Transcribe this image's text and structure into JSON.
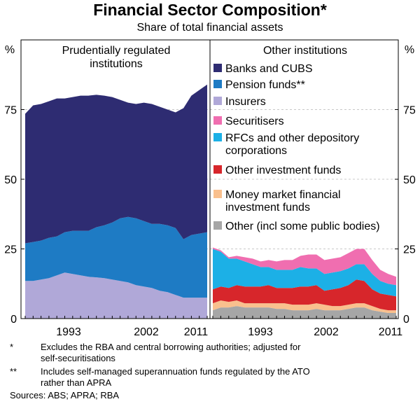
{
  "chart_data": {
    "type": "area",
    "title": "Financial Sector Composition*",
    "subtitle": "Share of total financial assets",
    "unit_label": "%",
    "ylim": [
      0,
      100
    ],
    "y_ticks": [
      0,
      25,
      50,
      75
    ],
    "x_tick_labels": [
      "1993",
      "2002",
      "2011"
    ],
    "panels": [
      {
        "title_lines": [
          "Prudentially regulated",
          "institutions"
        ],
        "x": [
          1988,
          1989,
          1990,
          1991,
          1992,
          1993,
          1994,
          1995,
          1996,
          1997,
          1998,
          1999,
          2000,
          2001,
          2002,
          2003,
          2004,
          2005,
          2006,
          2007,
          2008,
          2009,
          2010,
          2011
        ],
        "series": [
          {
            "name": "Insurers",
            "color": "#b0a8d8",
            "values": [
              13.5,
              13.5,
              14,
              14.5,
              15.5,
              16.5,
              16,
              15.5,
              15,
              14.8,
              14.5,
              14,
              13.5,
              13,
              12,
              11.5,
              11,
              10,
              9.5,
              8.5,
              7.5,
              7.5,
              7.5,
              7.5
            ]
          },
          {
            "name": "Pension funds**",
            "color": "#1e7bc4",
            "values": [
              13.5,
              14,
              14,
              14.5,
              14,
              14.5,
              15.5,
              16,
              16.5,
              18,
              19,
              20.5,
              22.5,
              23.5,
              24,
              23.5,
              23,
              24,
              24,
              24,
              21,
              22.5,
              23,
              23.5
            ]
          },
          {
            "name": "Banks and CUBS",
            "color": "#2e2c72",
            "values": [
              46.5,
              49,
              49,
              49,
              49.5,
              48,
              48,
              48.5,
              48.5,
              47.5,
              46.5,
              45,
              42.5,
              41,
              41,
              42.5,
              43,
              42,
              41.5,
              41.5,
              47,
              50,
              51.5,
              53
            ]
          }
        ]
      },
      {
        "title_lines": [
          "Other institutions"
        ],
        "x": [
          1988,
          1989,
          1990,
          1991,
          1992,
          1993,
          1994,
          1995,
          1996,
          1997,
          1998,
          1999,
          2000,
          2001,
          2002,
          2003,
          2004,
          2005,
          2006,
          2007,
          2008,
          2009,
          2010,
          2011
        ],
        "series": [
          {
            "name": "Other (incl some public bodies)",
            "color": "#a6a6a6",
            "values": [
              3,
              4,
              4,
              4.5,
              4,
              4,
              4,
              4,
              3.5,
              3.5,
              3,
              3,
              3,
              3.5,
              3,
              3,
              3,
              3.5,
              4,
              4,
              3,
              2.5,
              2,
              2
            ]
          },
          {
            "name": "Money market financial investment funds",
            "color": "#f9c08e",
            "values": [
              2.5,
              2.5,
              2,
              2,
              1.5,
              1.5,
              1.5,
              1.5,
              2,
              2,
              2,
              2,
              2,
              2,
              2,
              1.5,
              1.5,
              1.5,
              1.5,
              1.5,
              1.5,
              1,
              1,
              1
            ]
          },
          {
            "name": "Other investment funds",
            "color": "#d7262b",
            "values": [
              5,
              5,
              5,
              5.5,
              6,
              6,
              6,
              6.5,
              5.5,
              5.5,
              6,
              6.5,
              6.5,
              6.5,
              5,
              6,
              6.5,
              7,
              8.5,
              8,
              6,
              5.5,
              5.5,
              5
            ]
          },
          {
            "name": "RFCs and other depository corporations",
            "color": "#1cb0e6",
            "values": [
              14.5,
              12.5,
              10.5,
              9.5,
              9,
              8,
              7,
              6.5,
              6.5,
              6.5,
              6.5,
              7,
              6.5,
              6,
              6,
              6,
              6,
              6,
              5.5,
              6,
              5.5,
              4.5,
              4,
              4
            ]
          },
          {
            "name": "Securitisers",
            "color": "#f06eb0",
            "values": [
              0.5,
              0.5,
              0.5,
              1,
              1.5,
              2,
              2,
              2.5,
              3,
              3.5,
              3.5,
              4,
              5,
              5,
              5,
              5,
              5,
              5.5,
              5.5,
              5.5,
              5,
              4,
              3.5,
              3
            ]
          }
        ]
      }
    ],
    "legend": [
      {
        "lines": [
          "Banks and CUBS"
        ],
        "color": "#2e2c72"
      },
      {
        "lines": [
          "Pension funds**"
        ],
        "color": "#1e7bc4"
      },
      {
        "lines": [
          "Insurers"
        ],
        "color": "#b0a8d8"
      },
      {
        "lines": [
          "Securitisers"
        ],
        "color": "#f06eb0"
      },
      {
        "lines": [
          "RFCs and other depository",
          "corporations"
        ],
        "color": "#1cb0e6"
      },
      {
        "lines": [
          "Other investment funds"
        ],
        "color": "#d7262b"
      },
      {
        "lines": [
          "Money market financial",
          "investment funds"
        ],
        "color": "#f9c08e"
      },
      {
        "lines": [
          "Other (incl some public bodies)"
        ],
        "color": "#a6a6a6"
      }
    ]
  },
  "footnotes": [
    {
      "mark": "*",
      "lines": [
        "Excludes the RBA and central borrowing authorities; adjusted for",
        "self-securitisations"
      ]
    },
    {
      "mark": "**",
      "lines": [
        "Includes self-managed superannuation funds regulated by the ATO",
        "rather than APRA"
      ]
    }
  ],
  "sources": "Sources: ABS; APRA; RBA"
}
